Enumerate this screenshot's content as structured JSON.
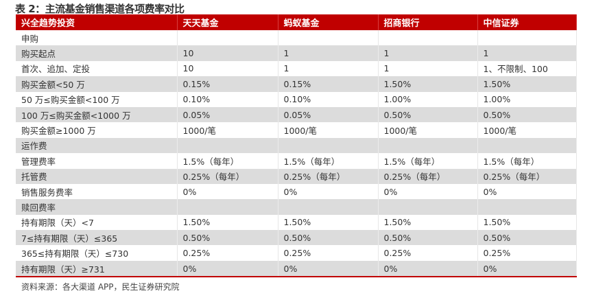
{
  "title": "表 2：主流基金销售渠道各项费率对比",
  "headers": [
    "兴全趋势投资",
    "天天基金",
    "蚂蚁基金",
    "招商银行",
    "中信证券"
  ],
  "rows": [
    [
      "申购",
      "",
      "",
      "",
      ""
    ],
    [
      "购买起点",
      "10",
      "1",
      "1",
      "1"
    ],
    [
      "首次、追加、定投",
      "10",
      "1",
      "1",
      "1、不限制、100"
    ],
    [
      "购买金额<50 万",
      "0.15%",
      "0.15%",
      "1.50%",
      "1.50%"
    ],
    [
      "50 万≤购买金额<100 万",
      "0.10%",
      "0.10%",
      "1.00%",
      "1.00%"
    ],
    [
      "100 万≤购买金额<1000 万",
      "0.05%",
      "0.05%",
      "0.50%",
      "0.50%"
    ],
    [
      "购买金额≥1000 万",
      "1000/笔",
      "1000/笔",
      "1000/笔",
      "1000/笔"
    ],
    [
      "运作费",
      "",
      "",
      "",
      ""
    ],
    [
      "管理费率",
      "1.5%（每年）",
      "1.5%（每年）",
      "1.5%（每年）",
      "1.5%（每年）"
    ],
    [
      "托管费",
      "0.25%（每年）",
      "0.25%（每年）",
      "0.25%（每年）",
      "0.25%（每年）"
    ],
    [
      "销售服务费率",
      "0%",
      "0%",
      "0%",
      "0%"
    ],
    [
      "赎回费率",
      "",
      "",
      "",
      ""
    ],
    [
      "持有期限（天）<7",
      "1.50%",
      "1.50%",
      "1.50%",
      "1.50%"
    ],
    [
      "7≤持有期限（天）≤365",
      "0.50%",
      "0.50%",
      "0.50%",
      "0.50%"
    ],
    [
      "365≤持有期限（天）≤730",
      "0.25%",
      "0.25%",
      "0.25%",
      "0.25%"
    ],
    [
      "持有期限（天）≥731",
      "0%",
      "0%",
      "0%",
      "0%"
    ]
  ],
  "source": "资料来源：各大渠道 APP，民生证券研究院",
  "colors": {
    "header": "#c00000",
    "stripe": "#dcdcdc"
  }
}
